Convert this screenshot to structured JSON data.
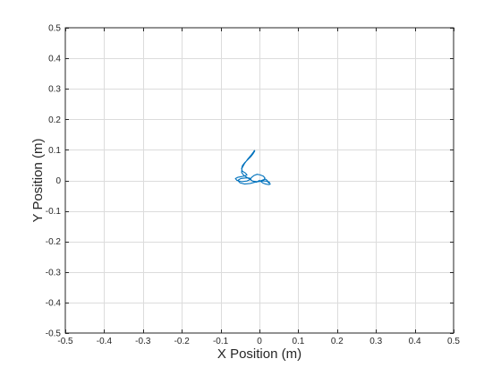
{
  "chart_data": {
    "type": "line",
    "title": "",
    "xlabel": "X Position (m)",
    "ylabel": "Y Position (m)",
    "xlim": [
      -0.5,
      0.5
    ],
    "ylim": [
      -0.5,
      0.5
    ],
    "grid": true,
    "x_ticks": [
      -0.5,
      -0.4,
      -0.3,
      -0.2,
      -0.1,
      0,
      0.1,
      0.2,
      0.3,
      0.4,
      0.5
    ],
    "y_ticks": [
      -0.5,
      -0.4,
      -0.3,
      -0.2,
      -0.1,
      0,
      0.1,
      0.2,
      0.3,
      0.4,
      0.5
    ],
    "x_tick_labels": [
      "-0.5",
      "-0.4",
      "-0.3",
      "-0.2",
      "-0.1",
      "0",
      "0.1",
      "0.2",
      "0.3",
      "0.4",
      "0.5"
    ],
    "y_tick_labels": [
      "-0.5",
      "-0.4",
      "-0.3",
      "-0.2",
      "-0.1",
      "0",
      "0.1",
      "0.2",
      "0.3",
      "0.4",
      "0.5"
    ],
    "series": [
      {
        "color": "#0072bd",
        "x": [
          0.0,
          -0.008,
          -0.018,
          -0.03,
          -0.04,
          -0.046,
          -0.045,
          -0.038,
          -0.03,
          -0.022,
          -0.016,
          -0.013,
          -0.012,
          -0.016,
          -0.022,
          -0.03,
          -0.038,
          -0.044,
          -0.046,
          -0.044,
          -0.036,
          -0.032,
          -0.04,
          -0.048,
          -0.056,
          -0.062,
          -0.058,
          -0.046,
          -0.032,
          -0.022,
          -0.026,
          -0.036,
          -0.048,
          -0.056,
          -0.05,
          -0.038,
          -0.024,
          -0.012,
          -0.002,
          0.006,
          0.012,
          0.014,
          0.01,
          0.002,
          -0.006,
          -0.014,
          -0.02,
          -0.024,
          -0.018,
          -0.008,
          0.002,
          0.01,
          0.016,
          0.02,
          0.022,
          0.028,
          0.024,
          0.016,
          0.008,
          0.004,
          0.008,
          0.016,
          0.022,
          0.026
        ],
        "y": [
          0.0,
          -0.006,
          -0.002,
          0.008,
          0.016,
          0.026,
          0.04,
          0.056,
          0.07,
          0.082,
          0.092,
          0.098,
          0.096,
          0.088,
          0.078,
          0.068,
          0.058,
          0.048,
          0.038,
          0.03,
          0.024,
          0.018,
          0.014,
          0.012,
          0.01,
          0.006,
          0.0,
          -0.004,
          -0.002,
          0.004,
          0.008,
          0.008,
          0.006,
          0.0,
          -0.008,
          -0.012,
          -0.01,
          -0.006,
          -0.004,
          -0.002,
          0.002,
          0.008,
          0.014,
          0.018,
          0.02,
          0.016,
          0.01,
          0.004,
          -0.002,
          -0.004,
          -0.002,
          0.002,
          0.004,
          0.0,
          -0.006,
          -0.012,
          -0.014,
          -0.012,
          -0.008,
          -0.004,
          -0.002,
          -0.002,
          -0.004,
          -0.006
        ]
      }
    ]
  }
}
